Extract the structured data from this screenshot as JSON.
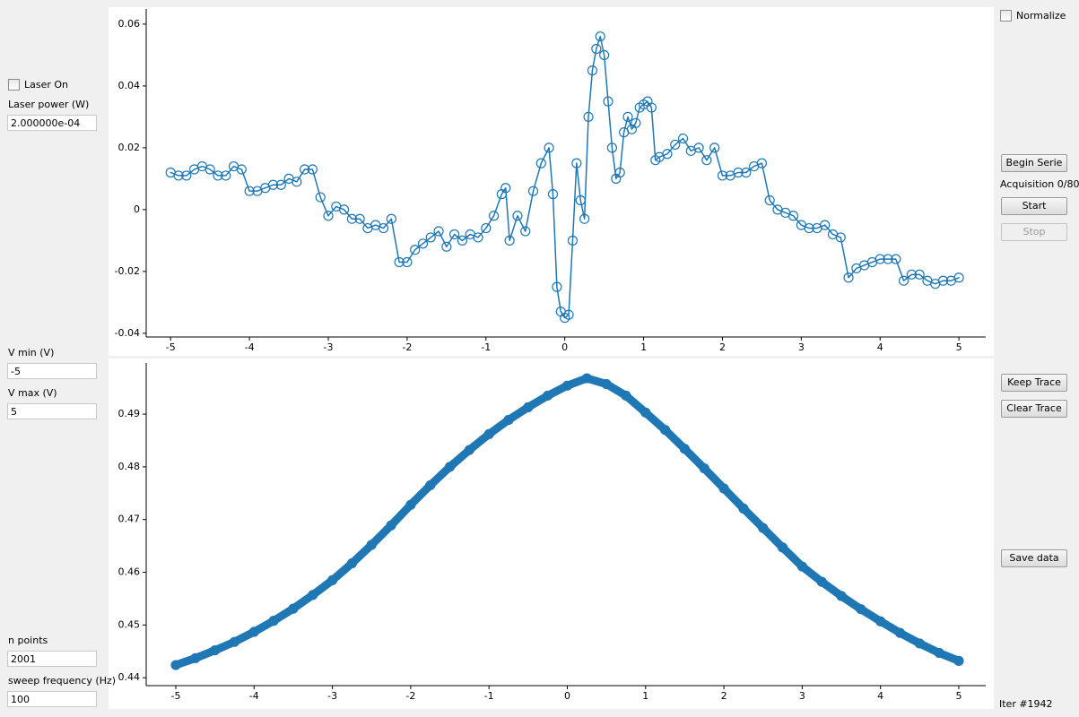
{
  "left_panel": {
    "laser_on": "Laser On",
    "laser_power_label": "Laser power (W)",
    "laser_power": "2.000000e-04",
    "vmin_label": "V min (V)",
    "vmin": "-5",
    "vmax_label": "V max (V)",
    "vmax": "5",
    "npoints_label": "n points",
    "npoints": "2001",
    "sweep_label": "sweep frequency (Hz)",
    "sweep": "100"
  },
  "right_panel": {
    "normalize": "Normalize",
    "begin_serie": "Begin Serie",
    "acquisition": "Acquisition 0/80",
    "start": "Start",
    "stop": "Stop",
    "keep_trace": "Keep Trace",
    "clear_trace": "Clear Trace",
    "save_data": "Save data",
    "iter": "Iter #1942"
  },
  "chart_data": [
    {
      "type": "scatter",
      "color": "#1f77b4",
      "x": [
        -5,
        -4.9,
        -4.8,
        -4.7,
        -4.6,
        -4.5,
        -4.4,
        -4.3,
        -4.2,
        -4.1,
        -4,
        -3.9,
        -3.8,
        -3.7,
        -3.6,
        -3.5,
        -3.4,
        -3.3,
        -3.2,
        -3.1,
        -3,
        -2.9,
        -2.8,
        -2.7,
        -2.6,
        -2.5,
        -2.4,
        -2.3,
        -2.2,
        -2.1,
        -2,
        -1.9,
        -1.8,
        -1.7,
        -1.6,
        -1.5,
        -1.4,
        -1.3,
        -1.2,
        -1.1,
        -1,
        -0.9,
        -0.8,
        -0.75,
        -0.7,
        -0.6,
        -0.5,
        -0.4,
        -0.3,
        -0.2,
        -0.15,
        -0.1,
        -0.05,
        0,
        0.05,
        0.1,
        0.15,
        0.2,
        0.25,
        0.3,
        0.35,
        0.4,
        0.45,
        0.5,
        0.55,
        0.6,
        0.65,
        0.7,
        0.75,
        0.8,
        0.85,
        0.9,
        0.95,
        1,
        1.05,
        1.1,
        1.15,
        1.2,
        1.3,
        1.4,
        1.5,
        1.6,
        1.7,
        1.8,
        1.9,
        2,
        2.1,
        2.2,
        2.3,
        2.4,
        2.5,
        2.6,
        2.7,
        2.8,
        2.9,
        3,
        3.1,
        3.2,
        3.3,
        3.4,
        3.5,
        3.6,
        3.7,
        3.8,
        3.9,
        4,
        4.1,
        4.2,
        4.3,
        4.4,
        4.5,
        4.6,
        4.7,
        4.8,
        4.9,
        5
      ],
      "values": [
        0.012,
        0.011,
        0.011,
        0.013,
        0.014,
        0.013,
        0.011,
        0.011,
        0.014,
        0.013,
        0.006,
        0.006,
        0.007,
        0.008,
        0.008,
        0.01,
        0.009,
        0.013,
        0.013,
        0.004,
        -0.002,
        0.001,
        0,
        -0.003,
        -0.003,
        -0.006,
        -0.005,
        -0.006,
        -0.003,
        -0.017,
        -0.017,
        -0.013,
        -0.011,
        -0.009,
        -0.007,
        -0.012,
        -0.008,
        -0.01,
        -0.008,
        -0.009,
        -0.006,
        -0.002,
        0.005,
        0.007,
        -0.01,
        -0.002,
        -0.007,
        0.006,
        0.015,
        0.02,
        0.005,
        -0.025,
        -0.033,
        -0.035,
        -0.034,
        -0.01,
        0.015,
        0.003,
        -0.003,
        0.03,
        0.045,
        0.052,
        0.056,
        0.05,
        0.035,
        0.02,
        0.01,
        0.012,
        0.025,
        0.03,
        0.026,
        0.028,
        0.033,
        0.034,
        0.035,
        0.033,
        0.016,
        0.017,
        0.018,
        0.021,
        0.023,
        0.019,
        0.02,
        0.016,
        0.02,
        0.011,
        0.011,
        0.012,
        0.012,
        0.014,
        0.015,
        0.003,
        0,
        -0.001,
        -0.002,
        -0.005,
        -0.006,
        -0.006,
        -0.005,
        -0.008,
        -0.009,
        -0.022,
        -0.019,
        -0.018,
        -0.017,
        -0.016,
        -0.016,
        -0.016,
        -0.023,
        -0.021,
        -0.021,
        -0.023,
        -0.024,
        -0.023,
        -0.023,
        -0.022
      ],
      "xlim": [
        -5.31,
        5.34
      ],
      "ylim": [
        -0.0412,
        0.0649
      ],
      "xticks": [
        -5,
        -4,
        -3,
        -2,
        -1,
        0,
        1,
        2,
        3,
        4,
        5
      ],
      "yticks": [
        -0.04,
        -0.02,
        0,
        0.02,
        0.04,
        0.06
      ]
    },
    {
      "type": "scatter",
      "color": "#1f77b4",
      "x": [
        -5,
        -4.75,
        -4.5,
        -4.25,
        -4,
        -3.75,
        -3.5,
        -3.25,
        -3,
        -2.75,
        -2.5,
        -2.25,
        -2,
        -1.75,
        -1.5,
        -1.25,
        -1,
        -0.75,
        -0.5,
        -0.25,
        0,
        0.25,
        0.5,
        0.75,
        1,
        1.25,
        1.5,
        1.75,
        2,
        2.25,
        2.5,
        2.75,
        3,
        3.25,
        3.5,
        3.75,
        4,
        4.25,
        4.5,
        4.75,
        5
      ],
      "values": [
        0.4424,
        0.4437,
        0.4452,
        0.4468,
        0.4487,
        0.4508,
        0.4531,
        0.4557,
        0.4585,
        0.4617,
        0.4652,
        0.4689,
        0.4728,
        0.4765,
        0.48,
        0.4832,
        0.4862,
        0.4889,
        0.4913,
        0.4935,
        0.4954,
        0.4968,
        0.4957,
        0.4935,
        0.4903,
        0.487,
        0.4834,
        0.4797,
        0.4759,
        0.4721,
        0.4684,
        0.4647,
        0.4611,
        0.4582,
        0.4555,
        0.453,
        0.4507,
        0.4485,
        0.4465,
        0.4447,
        0.4432
      ],
      "xlim": [
        -5.378,
        5.344
      ],
      "ylim": [
        0.4385,
        0.4997
      ],
      "xticks": [
        -5,
        -4,
        -3,
        -2,
        -1,
        0,
        1,
        2,
        3,
        4,
        5
      ],
      "yticks": [
        0.44,
        0.45,
        0.46,
        0.47,
        0.48,
        0.49
      ]
    }
  ]
}
